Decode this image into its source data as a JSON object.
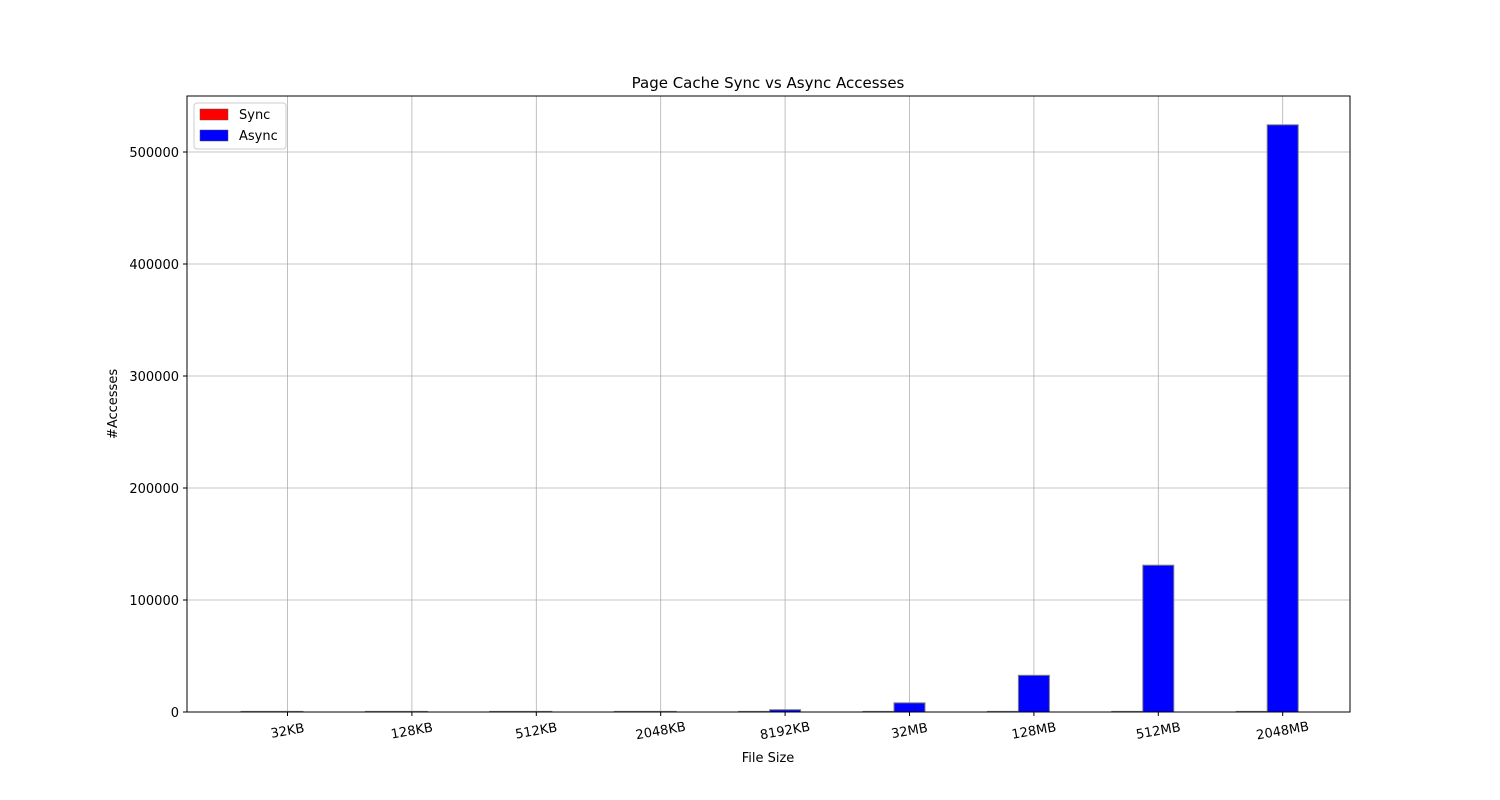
{
  "chart_data": {
    "type": "bar",
    "title": "Page Cache Sync vs Async Accesses",
    "xlabel": "File Size",
    "ylabel": "#Accesses",
    "categories": [
      "32KB",
      "128KB",
      "512KB",
      "2048KB",
      "8192KB",
      "32MB",
      "128MB",
      "512MB",
      "2048MB"
    ],
    "series": [
      {
        "name": "Sync",
        "color": "#ff0000",
        "values": [
          0,
          0,
          0,
          0,
          0,
          0,
          0,
          0,
          0
        ]
      },
      {
        "name": "Async",
        "color": "#0000ff",
        "values": [
          8,
          32,
          128,
          512,
          2048,
          8192,
          32768,
          131072,
          524288
        ]
      }
    ],
    "ylim": [
      0,
      550000
    ],
    "yticks": [
      0,
      100000,
      200000,
      300000,
      400000,
      500000
    ],
    "grid": true,
    "legend_position": "top-left",
    "tick_rotation_deg": -10
  }
}
